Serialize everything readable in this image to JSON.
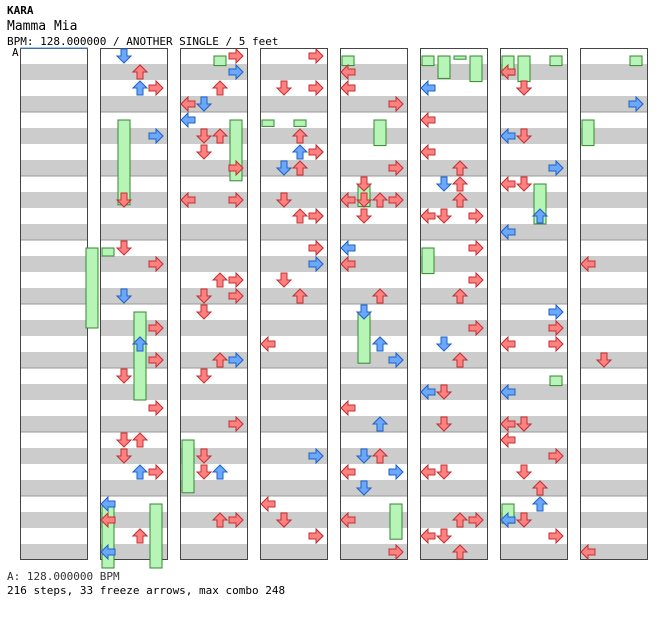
{
  "header": {
    "artist": "KARA",
    "title": "Mamma Mia",
    "info": "BPM: 128.000000 / ANOTHER SINGLE / 5 feet"
  },
  "bpm_marker": "A",
  "footer": {
    "bpm_line": "A: 128.000000 BPM",
    "stats": "216 steps, 33 freeze arrows, max combo 248"
  },
  "chart_data": {
    "type": "step-chart",
    "columns_count": 8,
    "lanes": [
      "left",
      "down",
      "up",
      "right"
    ],
    "colors": {
      "quarter": "#ff8080",
      "eighth": "#6aa8ff",
      "freeze": "#b6f5b6",
      "band": "#cccccc"
    },
    "notes": [
      [
        0,
        4,
        3,
        5
      ],
      [
        1,
        0,
        3,
        0.5
      ],
      [
        1,
        0,
        7,
        5.8
      ],
      [
        1,
        0,
        8,
        5.8
      ],
      [
        1,
        0,
        9,
        5.8
      ],
      [
        1,
        1,
        1,
        5.3
      ],
      [
        1,
        2,
        4,
        0.5
      ],
      [
        1,
        2,
        4,
        5.5
      ],
      [
        1,
        3,
        7,
        4.8
      ],
      [
        2,
        0,
        6,
        3.3
      ],
      [
        2,
        3,
        1,
        3.8
      ],
      [
        2,
        2,
        0,
        0.6
      ],
      [
        3,
        0,
        1,
        0.4
      ],
      [
        3,
        2,
        1,
        0.4
      ],
      [
        4,
        0,
        0,
        0.6
      ],
      [
        4,
        1,
        2,
        1.4
      ],
      [
        4,
        1,
        4,
        3.2
      ],
      [
        4,
        2,
        1,
        1.6
      ],
      [
        4,
        3,
        7,
        2.2
      ],
      [
        5,
        0,
        0,
        0.6
      ],
      [
        5,
        0,
        3,
        1.6
      ],
      [
        5,
        1,
        0,
        1.4
      ],
      [
        5,
        3,
        0,
        1.6
      ],
      [
        5,
        2,
        0,
        0.2
      ],
      [
        6,
        0,
        0,
        1.2
      ],
      [
        6,
        1,
        0,
        1.6
      ],
      [
        6,
        2,
        2,
        2.5
      ],
      [
        6,
        0,
        7,
        1.2
      ],
      [
        6,
        3,
        5,
        0.6
      ],
      [
        6,
        3,
        0,
        0.6
      ],
      [
        7,
        3,
        0,
        0.6
      ],
      [
        7,
        0,
        1,
        1.6
      ]
    ]
  }
}
